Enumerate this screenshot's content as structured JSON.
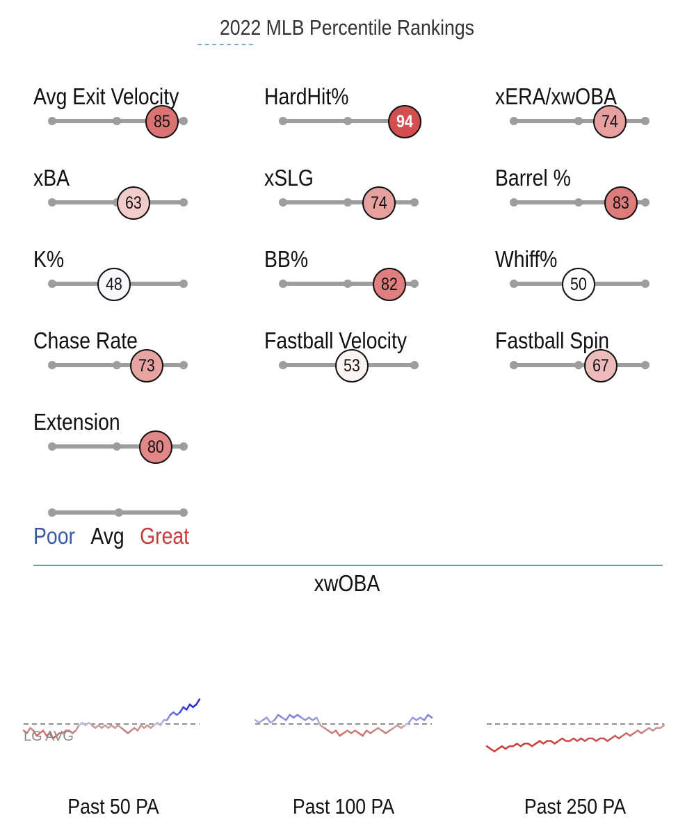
{
  "title": "2022 MLB Percentile Rankings",
  "metrics": [
    {
      "label": "Avg Exit Velocity",
      "percentile": 85
    },
    {
      "label": "HardHit%",
      "percentile": 94
    },
    {
      "label": "xERA/xwOBA",
      "percentile": 74
    },
    {
      "label": "xBA",
      "percentile": 63
    },
    {
      "label": "xSLG",
      "percentile": 74
    },
    {
      "label": "Barrel %",
      "percentile": 83
    },
    {
      "label": "K%",
      "percentile": 48
    },
    {
      "label": "BB%",
      "percentile": 82
    },
    {
      "label": "Whiff%",
      "percentile": 50
    },
    {
      "label": "Chase Rate",
      "percentile": 73
    },
    {
      "label": "Fastball Velocity",
      "percentile": 53
    },
    {
      "label": "Fastball Spin",
      "percentile": 67
    },
    {
      "label": "Extension",
      "percentile": 80
    }
  ],
  "legend": {
    "poor": "Poor",
    "avg": "Avg",
    "great": "Great"
  },
  "colors": {
    "poor": "#3a5aa8",
    "great": "#c63a3a",
    "track": "#9d9d9d",
    "above_avg_line": "#c94040",
    "below_avg_line": "#2b2bd8"
  },
  "section_title": "xwOBA",
  "lg_avg_label": "LG AVG",
  "chart_data": {
    "type": "line",
    "title": "xwOBA",
    "reference_line": "LG AVG",
    "series": [
      {
        "name": "Past 50 PA",
        "values": [
          0.36,
          0.35,
          0.37,
          0.36,
          0.34,
          0.35,
          0.36,
          0.34,
          0.35,
          0.33,
          0.34,
          0.35,
          0.35,
          0.36,
          0.36,
          0.35,
          0.36,
          0.38,
          0.39,
          0.38,
          0.39,
          0.38,
          0.37,
          0.38,
          0.37,
          0.38,
          0.37,
          0.38,
          0.37,
          0.38,
          0.37,
          0.36,
          0.35,
          0.36,
          0.37,
          0.36,
          0.38,
          0.37,
          0.38,
          0.37,
          0.38,
          0.39,
          0.38,
          0.4,
          0.4,
          0.42,
          0.43,
          0.42,
          0.43,
          0.45,
          0.44,
          0.46,
          0.45,
          0.46,
          0.48
        ]
      },
      {
        "name": "Past 100 PA",
        "values": [
          0.4,
          0.39,
          0.4,
          0.41,
          0.39,
          0.4,
          0.42,
          0.41,
          0.4,
          0.42,
          0.41,
          0.42,
          0.41,
          0.4,
          0.41,
          0.4,
          0.41,
          0.38,
          0.37,
          0.36,
          0.35,
          0.36,
          0.34,
          0.35,
          0.36,
          0.35,
          0.36,
          0.35,
          0.34,
          0.36,
          0.35,
          0.36,
          0.37,
          0.36,
          0.35,
          0.36,
          0.37,
          0.38,
          0.37,
          0.38,
          0.39,
          0.41,
          0.4,
          0.41,
          0.4,
          0.42,
          0.41
        ]
      },
      {
        "name": "Past 250 PA",
        "values": [
          0.3,
          0.29,
          0.28,
          0.29,
          0.3,
          0.29,
          0.3,
          0.3,
          0.31,
          0.3,
          0.31,
          0.31,
          0.3,
          0.31,
          0.32,
          0.31,
          0.32,
          0.32,
          0.31,
          0.32,
          0.33,
          0.32,
          0.32,
          0.33,
          0.32,
          0.33,
          0.32,
          0.33,
          0.33,
          0.32,
          0.33,
          0.33,
          0.32,
          0.33,
          0.34,
          0.33,
          0.34,
          0.35,
          0.34,
          0.35,
          0.36,
          0.35,
          0.36,
          0.37,
          0.36,
          0.37,
          0.37,
          0.38
        ]
      }
    ],
    "league_average": 0.385
  }
}
